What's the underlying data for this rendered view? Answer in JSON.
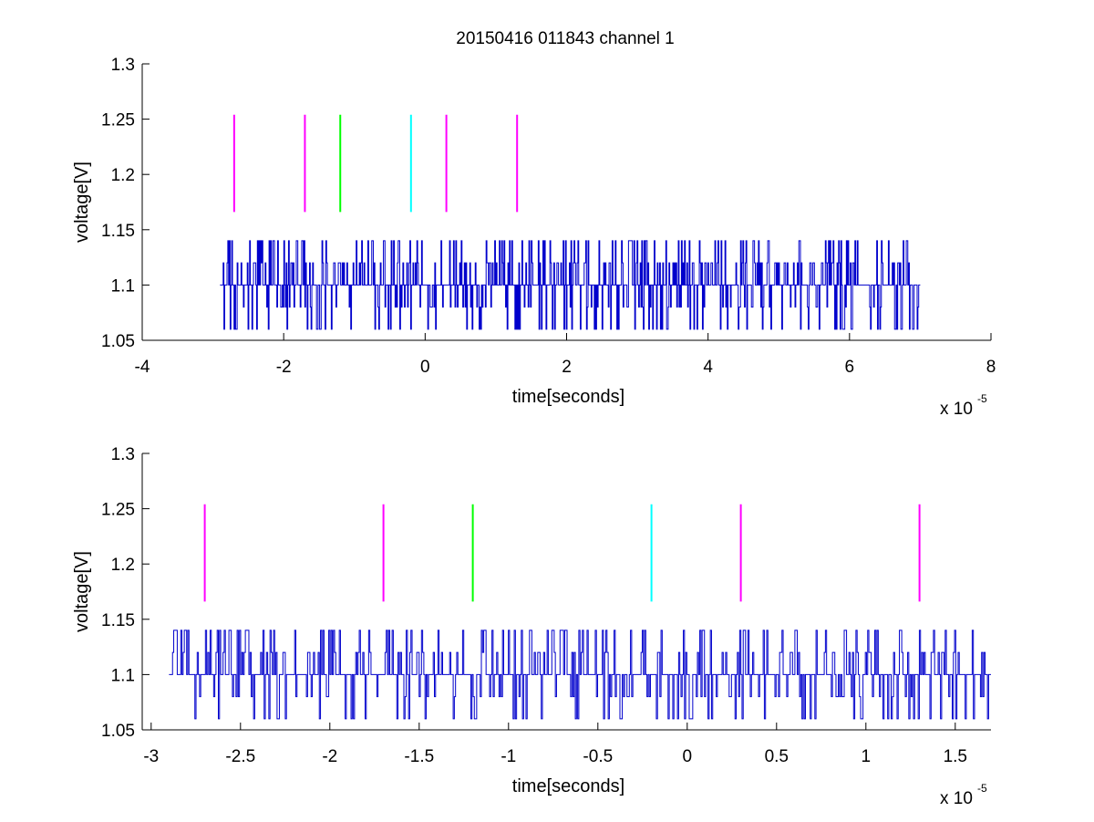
{
  "figure": {
    "title": "20150416 011843 channel 1"
  },
  "chart_data": [
    {
      "type": "line",
      "name": "top-subplot",
      "xlabel": "time[seconds]",
      "ylabel": "voltage[V]",
      "x_multiplier_base": "x 10",
      "x_multiplier_exp": "-5",
      "xlim": [
        -4,
        8
      ],
      "ylim": [
        1.05,
        1.3
      ],
      "xticks": [
        -4,
        -2,
        0,
        2,
        4,
        6,
        8
      ],
      "xtick_labels": [
        "-4",
        "-2",
        "0",
        "2",
        "4",
        "6",
        "8"
      ],
      "yticks": [
        1.05,
        1.1,
        1.15,
        1.2,
        1.25,
        1.3
      ],
      "ytick_labels": [
        "1.05",
        "1.1",
        "1.15",
        "1.2",
        "1.25",
        "1.3"
      ],
      "grid": false,
      "signal": {
        "color": "#0000cc",
        "x_range": [
          -2.9,
          7.0
        ],
        "levels": [
          1.06,
          1.08,
          1.1,
          1.12,
          1.14
        ]
      },
      "markers": [
        {
          "x": -2.7,
          "y_range": [
            1.166,
            1.254
          ],
          "color": "#ff00ff"
        },
        {
          "x": -1.7,
          "y_range": [
            1.166,
            1.254
          ],
          "color": "#ff00ff"
        },
        {
          "x": -1.2,
          "y_range": [
            1.166,
            1.254
          ],
          "color": "#00ff00"
        },
        {
          "x": -0.2,
          "y_range": [
            1.166,
            1.254
          ],
          "color": "#00ffff"
        },
        {
          "x": 0.3,
          "y_range": [
            1.166,
            1.254
          ],
          "color": "#ff00ff"
        },
        {
          "x": 1.3,
          "y_range": [
            1.166,
            1.254
          ],
          "color": "#ff00ff"
        }
      ]
    },
    {
      "type": "line",
      "name": "bottom-subplot",
      "xlabel": "time[seconds]",
      "ylabel": "voltage[V]",
      "x_multiplier_base": "x 10",
      "x_multiplier_exp": "-5",
      "xlim": [
        -3.05,
        1.7
      ],
      "ylim": [
        1.05,
        1.3
      ],
      "xticks": [
        -3,
        -2.5,
        -2,
        -1.5,
        -1,
        -0.5,
        0,
        0.5,
        1,
        1.5
      ],
      "xtick_labels": [
        "-3",
        "-2.5",
        "-2",
        "-1.5",
        "-1",
        "-0.5",
        "0",
        "0.5",
        "1",
        "1.5"
      ],
      "yticks": [
        1.05,
        1.1,
        1.15,
        1.2,
        1.25,
        1.3
      ],
      "ytick_labels": [
        "1.05",
        "1.1",
        "1.15",
        "1.2",
        "1.25",
        "1.3"
      ],
      "grid": false,
      "signal": {
        "color": "#0000cc",
        "x_range": [
          -2.9,
          1.7
        ],
        "levels": [
          1.06,
          1.08,
          1.1,
          1.12,
          1.14
        ]
      },
      "markers": [
        {
          "x": -2.7,
          "y_range": [
            1.166,
            1.254
          ],
          "color": "#ff00ff"
        },
        {
          "x": -1.7,
          "y_range": [
            1.166,
            1.254
          ],
          "color": "#ff00ff"
        },
        {
          "x": -1.2,
          "y_range": [
            1.166,
            1.254
          ],
          "color": "#00ff00"
        },
        {
          "x": -0.2,
          "y_range": [
            1.166,
            1.254
          ],
          "color": "#00ffff"
        },
        {
          "x": 0.3,
          "y_range": [
            1.166,
            1.254
          ],
          "color": "#ff00ff"
        },
        {
          "x": 1.3,
          "y_range": [
            1.166,
            1.254
          ],
          "color": "#ff00ff"
        }
      ]
    }
  ]
}
